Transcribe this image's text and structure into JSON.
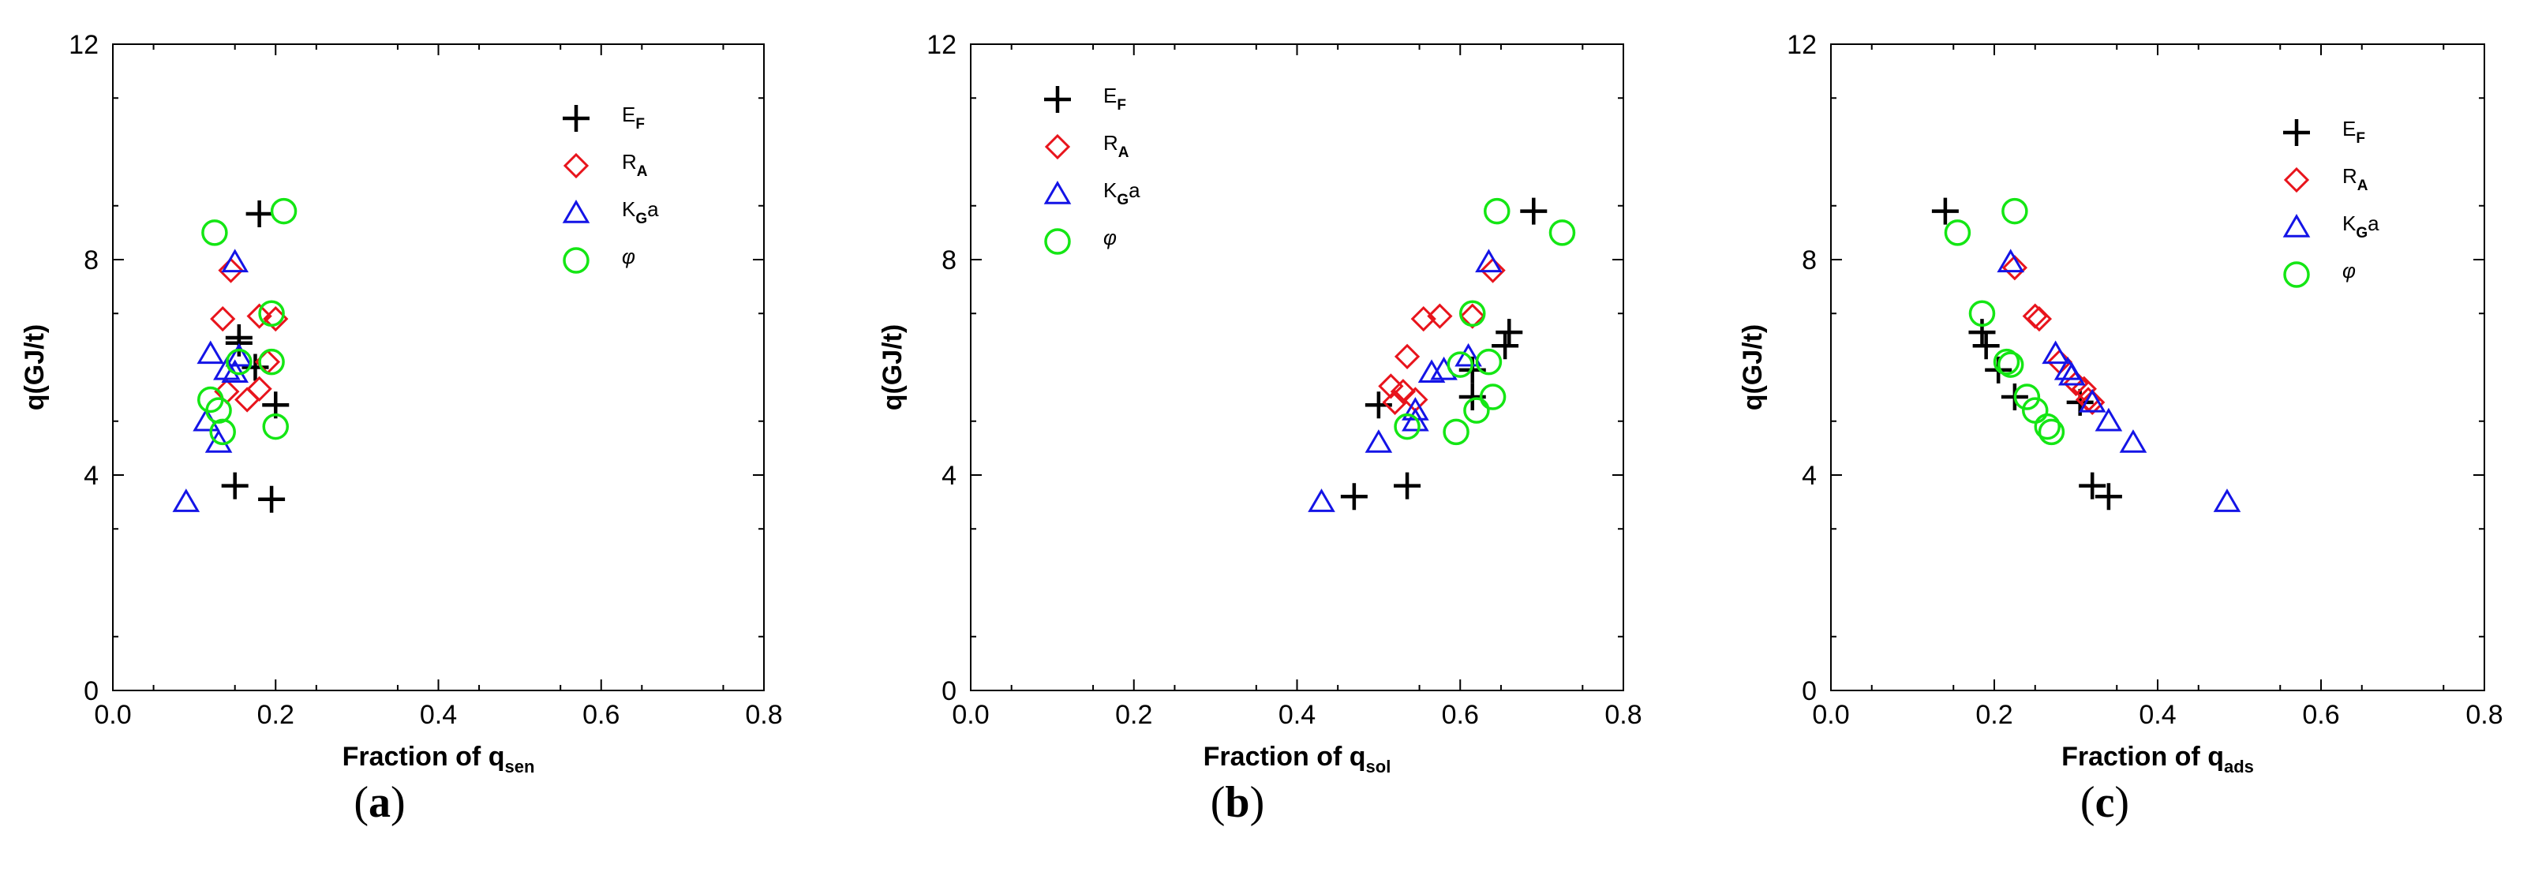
{
  "colors": {
    "ef": "#000000",
    "ra": "#e8141c",
    "kga": "#1414e6",
    "phi": "#14e614"
  },
  "chart_data": [
    {
      "type": "scatter",
      "panel_label": "(a)",
      "panel_letter": "a",
      "xlabel": "Fraction of q",
      "xlabel_sub": "sen",
      "ylabel": "q(GJ/t)",
      "xlim": [
        0.0,
        0.8
      ],
      "ylim": [
        0,
        12
      ],
      "xticks": [
        "0.0",
        "0.2",
        "0.4",
        "0.6",
        "0.8"
      ],
      "yticks": [
        "0",
        "4",
        "8",
        "12"
      ],
      "legend_position": "top-right",
      "series": [
        {
          "name": "EF",
          "label_main": "E",
          "label_sub": "F",
          "marker": "plus",
          "color_key": "ef",
          "points": [
            [
              0.18,
              8.85
            ],
            [
              0.155,
              6.55
            ],
            [
              0.155,
              6.45
            ],
            [
              0.175,
              6.0
            ],
            [
              0.2,
              5.3
            ],
            [
              0.15,
              3.8
            ],
            [
              0.195,
              3.55
            ]
          ]
        },
        {
          "name": "RA",
          "label_main": "R",
          "label_sub": "A",
          "marker": "diamond",
          "color_key": "ra",
          "points": [
            [
              0.145,
              7.8
            ],
            [
              0.135,
              6.9
            ],
            [
              0.18,
              6.95
            ],
            [
              0.2,
              6.9
            ],
            [
              0.19,
              6.1
            ],
            [
              0.18,
              5.6
            ],
            [
              0.165,
              5.4
            ],
            [
              0.14,
              5.55
            ]
          ]
        },
        {
          "name": "KGa",
          "label_main": "K",
          "label_sub": "G",
          "label_tail": "a",
          "marker": "triangle",
          "color_key": "kga",
          "points": [
            [
              0.15,
              7.95
            ],
            [
              0.12,
              6.25
            ],
            [
              0.14,
              5.95
            ],
            [
              0.15,
              5.9
            ],
            [
              0.115,
              5.0
            ],
            [
              0.13,
              4.6
            ],
            [
              0.09,
              3.5
            ],
            [
              0.155,
              6.2
            ]
          ]
        },
        {
          "name": "φ",
          "label_main": "φ",
          "marker": "circle",
          "color_key": "phi",
          "points": [
            [
              0.125,
              8.5
            ],
            [
              0.21,
              8.9
            ],
            [
              0.195,
              7.0
            ],
            [
              0.195,
              6.1
            ],
            [
              0.155,
              6.1
            ],
            [
              0.12,
              5.4
            ],
            [
              0.13,
              5.2
            ],
            [
              0.135,
              4.8
            ],
            [
              0.2,
              4.9
            ]
          ]
        }
      ]
    },
    {
      "type": "scatter",
      "panel_label": "(b)",
      "panel_letter": "b",
      "xlabel": "Fraction of q",
      "xlabel_sub": "sol",
      "ylabel": "q(GJ/t)",
      "xlim": [
        0.0,
        0.8
      ],
      "ylim": [
        0,
        12
      ],
      "xticks": [
        "0.0",
        "0.2",
        "0.4",
        "0.6",
        "0.8"
      ],
      "yticks": [
        "0",
        "4",
        "8",
        "12"
      ],
      "legend_position": "top-left",
      "series": [
        {
          "name": "EF",
          "label_main": "E",
          "label_sub": "F",
          "marker": "plus",
          "color_key": "ef",
          "points": [
            [
              0.69,
              8.9
            ],
            [
              0.66,
              6.65
            ],
            [
              0.655,
              6.4
            ],
            [
              0.615,
              5.95
            ],
            [
              0.615,
              5.45
            ],
            [
              0.5,
              5.3
            ],
            [
              0.535,
              3.8
            ],
            [
              0.47,
              3.6
            ]
          ]
        },
        {
          "name": "RA",
          "label_main": "R",
          "label_sub": "A",
          "marker": "diamond",
          "color_key": "ra",
          "points": [
            [
              0.64,
              7.8
            ],
            [
              0.615,
              6.95
            ],
            [
              0.555,
              6.9
            ],
            [
              0.575,
              6.95
            ],
            [
              0.535,
              6.2
            ],
            [
              0.515,
              5.65
            ],
            [
              0.53,
              5.55
            ],
            [
              0.545,
              5.4
            ],
            [
              0.52,
              5.35
            ]
          ]
        },
        {
          "name": "KGa",
          "label_main": "K",
          "label_sub": "G",
          "label_tail": "a",
          "marker": "triangle",
          "color_key": "kga",
          "points": [
            [
              0.635,
              7.95
            ],
            [
              0.61,
              6.2
            ],
            [
              0.565,
              5.9
            ],
            [
              0.58,
              5.95
            ],
            [
              0.545,
              5.2
            ],
            [
              0.545,
              5.0
            ],
            [
              0.5,
              4.6
            ],
            [
              0.43,
              3.5
            ]
          ]
        },
        {
          "name": "φ",
          "label_main": "φ",
          "marker": "circle",
          "color_key": "phi",
          "points": [
            [
              0.645,
              8.9
            ],
            [
              0.725,
              8.5
            ],
            [
              0.615,
              7.0
            ],
            [
              0.635,
              6.1
            ],
            [
              0.6,
              6.05
            ],
            [
              0.64,
              5.45
            ],
            [
              0.62,
              5.2
            ],
            [
              0.535,
              4.9
            ],
            [
              0.595,
              4.8
            ]
          ]
        }
      ]
    },
    {
      "type": "scatter",
      "panel_label": "(c)",
      "panel_letter": "c",
      "xlabel": "Fraction of q",
      "xlabel_sub": "ads",
      "ylabel": "q(GJ/t)",
      "xlim": [
        0.0,
        0.8
      ],
      "ylim": [
        0,
        12
      ],
      "xticks": [
        "0.0",
        "0.2",
        "0.4",
        "0.6",
        "0.8"
      ],
      "yticks": [
        "0",
        "4",
        "8",
        "12"
      ],
      "legend_position": "top-right",
      "series": [
        {
          "name": "EF",
          "label_main": "E",
          "label_sub": "F",
          "marker": "plus",
          "color_key": "ef",
          "points": [
            [
              0.14,
              8.9
            ],
            [
              0.185,
              6.65
            ],
            [
              0.19,
              6.4
            ],
            [
              0.205,
              5.95
            ],
            [
              0.225,
              5.45
            ],
            [
              0.305,
              5.35
            ],
            [
              0.32,
              3.8
            ],
            [
              0.34,
              3.6
            ]
          ]
        },
        {
          "name": "RA",
          "label_main": "R",
          "label_sub": "A",
          "marker": "diamond",
          "color_key": "ra",
          "points": [
            [
              0.225,
              7.85
            ],
            [
              0.25,
              6.95
            ],
            [
              0.255,
              6.9
            ],
            [
              0.28,
              6.1
            ],
            [
              0.3,
              5.7
            ],
            [
              0.31,
              5.6
            ],
            [
              0.315,
              5.4
            ],
            [
              0.32,
              5.35
            ]
          ]
        },
        {
          "name": "KGa",
          "label_main": "K",
          "label_sub": "G",
          "label_tail": "a",
          "marker": "triangle",
          "color_key": "kga",
          "points": [
            [
              0.22,
              7.95
            ],
            [
              0.275,
              6.25
            ],
            [
              0.29,
              5.95
            ],
            [
              0.295,
              5.85
            ],
            [
              0.32,
              5.35
            ],
            [
              0.34,
              5.0
            ],
            [
              0.37,
              4.6
            ],
            [
              0.485,
              3.5
            ]
          ]
        },
        {
          "name": "φ",
          "label_main": "φ",
          "marker": "circle",
          "color_key": "phi",
          "points": [
            [
              0.225,
              8.9
            ],
            [
              0.155,
              8.5
            ],
            [
              0.185,
              7.0
            ],
            [
              0.215,
              6.1
            ],
            [
              0.22,
              6.05
            ],
            [
              0.24,
              5.45
            ],
            [
              0.25,
              5.2
            ],
            [
              0.265,
              4.9
            ],
            [
              0.27,
              4.8
            ]
          ]
        }
      ]
    }
  ]
}
